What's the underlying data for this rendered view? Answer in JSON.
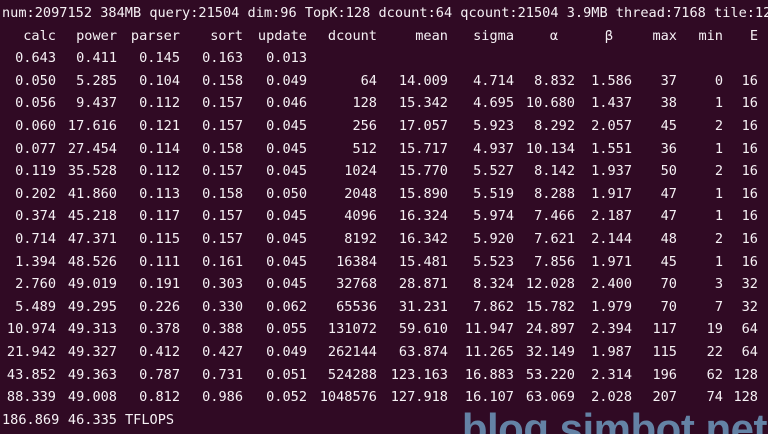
{
  "terminal": {
    "title_line": "num:2097152 384MB query:21504 dim:96 TopK:128 dcount:64 qcount:21504 3.9MB thread:7168 tile:12",
    "columns": [
      "calc",
      "power",
      "parser",
      "sort",
      "update",
      "dcount",
      "mean",
      "sigma",
      "α",
      "β",
      "max",
      "min",
      "E"
    ],
    "rows": [
      [
        "0.643",
        "0.411",
        "0.145",
        "0.163",
        "0.013",
        "",
        "",
        "",
        "",
        "",
        "",
        "",
        ""
      ],
      [
        "0.050",
        "5.285",
        "0.104",
        "0.158",
        "0.049",
        "64",
        "14.009",
        "4.714",
        "8.832",
        "1.586",
        "37",
        "0",
        "16"
      ],
      [
        "0.056",
        "9.437",
        "0.112",
        "0.157",
        "0.046",
        "128",
        "15.342",
        "4.695",
        "10.680",
        "1.437",
        "38",
        "1",
        "16"
      ],
      [
        "0.060",
        "17.616",
        "0.121",
        "0.157",
        "0.045",
        "256",
        "17.057",
        "5.923",
        "8.292",
        "2.057",
        "45",
        "2",
        "16"
      ],
      [
        "0.077",
        "27.454",
        "0.114",
        "0.158",
        "0.045",
        "512",
        "15.717",
        "4.937",
        "10.134",
        "1.551",
        "36",
        "1",
        "16"
      ],
      [
        "0.119",
        "35.528",
        "0.112",
        "0.157",
        "0.045",
        "1024",
        "15.770",
        "5.527",
        "8.142",
        "1.937",
        "50",
        "2",
        "16"
      ],
      [
        "0.202",
        "41.860",
        "0.113",
        "0.158",
        "0.050",
        "2048",
        "15.890",
        "5.519",
        "8.288",
        "1.917",
        "47",
        "1",
        "16"
      ],
      [
        "0.374",
        "45.218",
        "0.117",
        "0.157",
        "0.045",
        "4096",
        "16.324",
        "5.974",
        "7.466",
        "2.187",
        "47",
        "1",
        "16"
      ],
      [
        "0.714",
        "47.371",
        "0.115",
        "0.157",
        "0.045",
        "8192",
        "16.342",
        "5.920",
        "7.621",
        "2.144",
        "48",
        "2",
        "16"
      ],
      [
        "1.394",
        "48.526",
        "0.111",
        "0.161",
        "0.045",
        "16384",
        "15.481",
        "5.523",
        "7.856",
        "1.971",
        "45",
        "1",
        "16"
      ],
      [
        "2.760",
        "49.019",
        "0.191",
        "0.303",
        "0.045",
        "32768",
        "28.871",
        "8.324",
        "12.028",
        "2.400",
        "70",
        "3",
        "32"
      ],
      [
        "5.489",
        "49.295",
        "0.226",
        "0.330",
        "0.062",
        "65536",
        "31.231",
        "7.862",
        "15.782",
        "1.979",
        "70",
        "7",
        "32"
      ],
      [
        "10.974",
        "49.313",
        "0.378",
        "0.388",
        "0.055",
        "131072",
        "59.610",
        "11.947",
        "24.897",
        "2.394",
        "117",
        "19",
        "64"
      ],
      [
        "21.942",
        "49.327",
        "0.412",
        "0.427",
        "0.049",
        "262144",
        "63.874",
        "11.265",
        "32.149",
        "1.987",
        "115",
        "22",
        "64"
      ],
      [
        "43.852",
        "49.363",
        "0.787",
        "0.731",
        "0.051",
        "524288",
        "123.163",
        "16.883",
        "53.220",
        "2.314",
        "196",
        "62",
        "128"
      ],
      [
        "88.339",
        "49.008",
        "0.812",
        "0.986",
        "0.052",
        "1048576",
        "127.918",
        "16.107",
        "63.069",
        "2.028",
        "207",
        "74",
        "128"
      ]
    ],
    "summary": {
      "calc_total": "186.869",
      "power_total": "46.335",
      "unit": "TFLOPS"
    },
    "watermark": "blog.simbot.net",
    "colors": {
      "background": "#300a24",
      "text": "#f6f1f5",
      "watermark": "#6d98bc"
    }
  },
  "chart_data": {
    "type": "table",
    "title": "num:2097152 384MB query:21504 dim:96 TopK:128 dcount:64 qcount:21504 3.9MB thread:7168 tile:12",
    "columns": [
      "calc",
      "power",
      "parser",
      "sort",
      "update",
      "dcount",
      "mean",
      "sigma",
      "α",
      "β",
      "max",
      "min",
      "E"
    ],
    "dcount": [
      64,
      128,
      256,
      512,
      1024,
      2048,
      4096,
      8192,
      16384,
      32768,
      65536,
      131072,
      262144,
      524288,
      1048576
    ],
    "calc": [
      0.05,
      0.056,
      0.06,
      0.077,
      0.119,
      0.202,
      0.374,
      0.714,
      1.394,
      2.76,
      5.489,
      10.974,
      21.942,
      43.852,
      88.339
    ],
    "power": [
      5.285,
      9.437,
      17.616,
      27.454,
      35.528,
      41.86,
      45.218,
      47.371,
      48.526,
      49.019,
      49.295,
      49.313,
      49.327,
      49.363,
      49.008
    ],
    "totals": {
      "calc": 186.869,
      "power": 46.335,
      "unit": "TFLOPS"
    }
  }
}
